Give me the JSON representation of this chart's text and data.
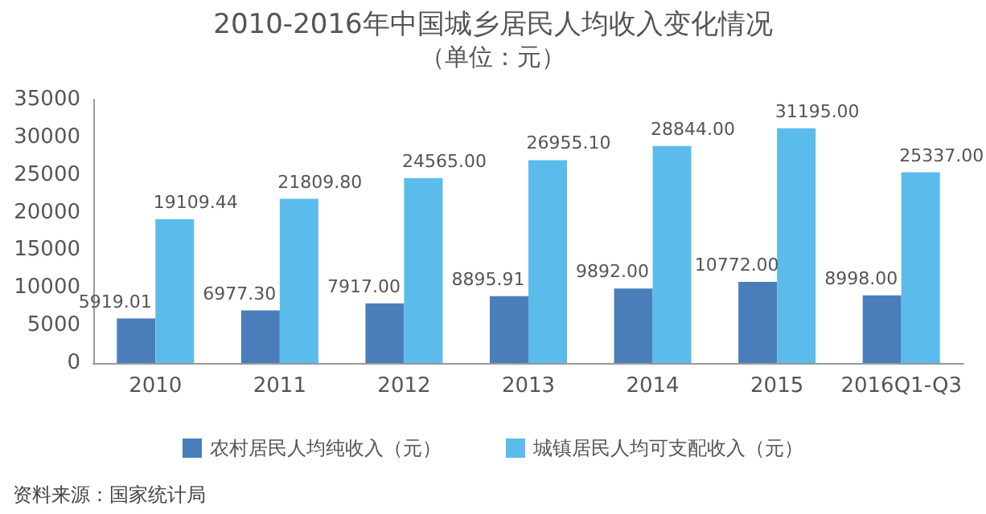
{
  "chart_data": {
    "type": "bar",
    "title": "2010-2016年中国城乡居民人均收入变化情况",
    "subtitle": "（单位：元）",
    "categories": [
      "2010",
      "2011",
      "2012",
      "2013",
      "2014",
      "2015",
      "2016Q1-Q3"
    ],
    "series": [
      {
        "name": "农村居民人均纯收入（元）",
        "color": "#4a7ebb",
        "values": [
          5919.01,
          6977.3,
          7917.0,
          8895.91,
          9892.0,
          10772.0,
          8998.0
        ],
        "value_labels": [
          "5919.01",
          "6977.30",
          "7917.00",
          "8895.91",
          "9892.00",
          "10772.00",
          "8998.00"
        ]
      },
      {
        "name": "城镇居民人均可支配收入（元）",
        "color": "#5bbcec",
        "values": [
          19109.44,
          21809.8,
          24565.0,
          26955.1,
          28844.0,
          31195.0,
          25337.0
        ],
        "value_labels": [
          "19109.44",
          "21809.80",
          "24565.00",
          "26955.10",
          "28844.00",
          "31195.00",
          "25337.00"
        ]
      }
    ],
    "ylim": [
      0,
      35000
    ],
    "yticks": [
      0,
      5000,
      10000,
      15000,
      20000,
      25000,
      30000,
      35000
    ],
    "grid": false,
    "legend": "bottom",
    "annotations": [
      "资料来源：国家统计局"
    ]
  }
}
